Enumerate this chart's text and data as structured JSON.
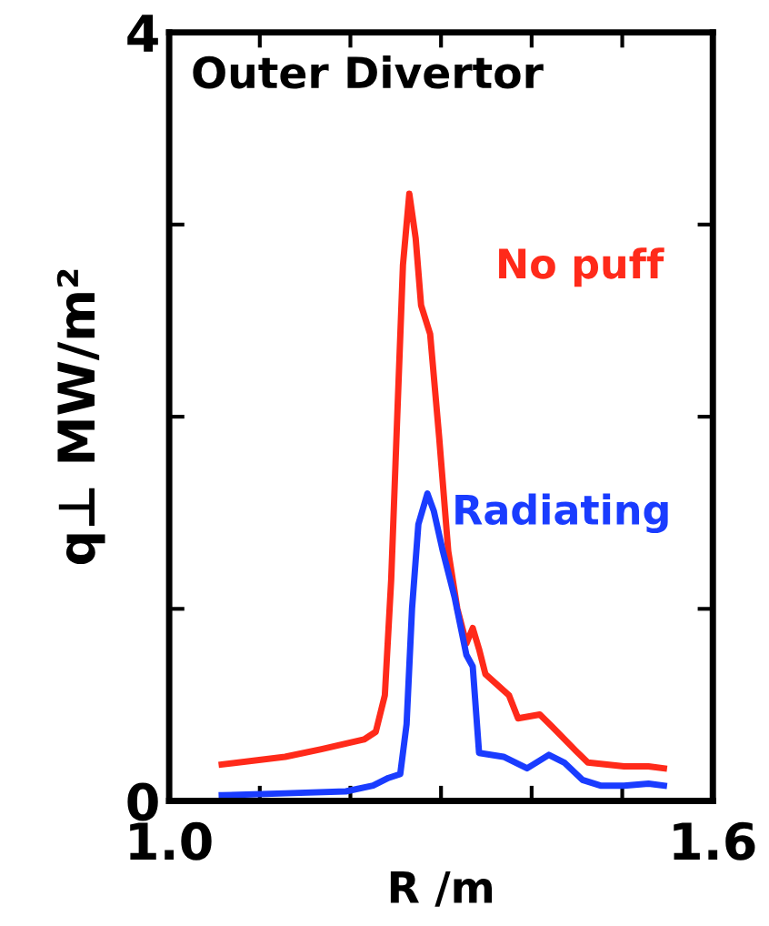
{
  "chart_data": {
    "type": "line",
    "xlabel": "R /m",
    "ylabel": "q⊥ MW/m²",
    "annotations": [
      "Outer Divertor"
    ],
    "xlim": [
      1.0,
      1.6
    ],
    "ylim": [
      0,
      4
    ],
    "xticks": [
      {
        "value": 1.0,
        "label": "1.0"
      },
      {
        "value": 1.1,
        "label": null
      },
      {
        "value": 1.2,
        "label": null
      },
      {
        "value": 1.3,
        "label": null
      },
      {
        "value": 1.4,
        "label": null
      },
      {
        "value": 1.5,
        "label": null
      },
      {
        "value": 1.6,
        "label": "1.6"
      }
    ],
    "yticks": [
      0,
      {
        "value": 1,
        "label": null
      },
      {
        "value": 2,
        "label": null
      },
      {
        "value": 3,
        "label": null
      },
      4
    ],
    "grid": false,
    "legend": false,
    "marker": "none",
    "line_style": "solid",
    "series": [
      {
        "name": "No puff",
        "color": "#ff2a1a",
        "x": [
          1.058,
          1.128,
          1.168,
          1.215,
          1.228,
          1.238,
          1.245,
          1.252,
          1.258,
          1.265,
          1.272,
          1.278,
          1.288,
          1.298,
          1.308,
          1.318,
          1.328,
          1.335,
          1.342,
          1.349,
          1.375,
          1.385,
          1.409,
          1.422,
          1.449,
          1.462,
          1.502,
          1.529,
          1.546
        ],
        "values": [
          0.19,
          0.23,
          0.27,
          0.32,
          0.36,
          0.55,
          1.15,
          2.04,
          2.79,
          3.16,
          2.93,
          2.58,
          2.43,
          1.89,
          1.3,
          1.0,
          0.82,
          0.9,
          0.79,
          0.66,
          0.55,
          0.43,
          0.45,
          0.39,
          0.26,
          0.2,
          0.18,
          0.18,
          0.17
        ]
      },
      {
        "name": "Radiating",
        "color": "#1a3cff",
        "x": [
          1.058,
          1.128,
          1.195,
          1.225,
          1.242,
          1.255,
          1.262,
          1.268,
          1.275,
          1.285,
          1.292,
          1.302,
          1.315,
          1.328,
          1.335,
          1.342,
          1.369,
          1.395,
          1.419,
          1.436,
          1.456,
          1.476,
          1.502,
          1.529,
          1.546
        ],
        "values": [
          0.03,
          0.04,
          0.05,
          0.08,
          0.12,
          0.14,
          0.4,
          1.0,
          1.44,
          1.6,
          1.51,
          1.3,
          1.06,
          0.76,
          0.7,
          0.25,
          0.23,
          0.17,
          0.24,
          0.2,
          0.11,
          0.08,
          0.08,
          0.09,
          0.08
        ]
      }
    ]
  }
}
